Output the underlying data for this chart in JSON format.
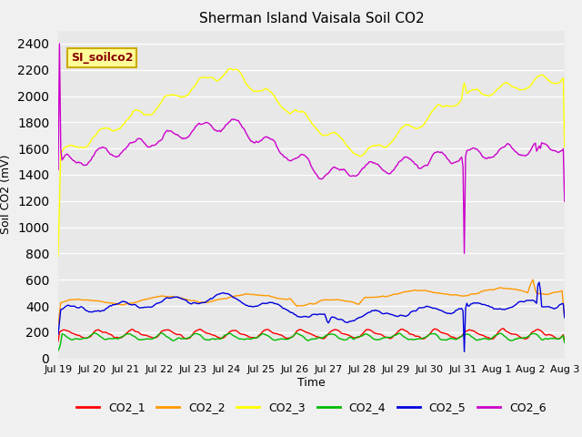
{
  "title": "Sherman Island Vaisala Soil CO2",
  "xlabel": "Time",
  "ylabel": "Soil CO2 (mV)",
  "ylim": [
    0,
    2500
  ],
  "yticks": [
    0,
    200,
    400,
    600,
    800,
    1000,
    1200,
    1400,
    1600,
    1800,
    2000,
    2200,
    2400
  ],
  "fig_bg": "#f0f0f0",
  "plot_bg": "#e8e8e8",
  "legend_label": "SI_soilco2",
  "legend_box_facecolor": "#ffff99",
  "legend_box_edgecolor": "#ccaa00",
  "series_colors": {
    "CO2_1": "#ff0000",
    "CO2_2": "#ff9900",
    "CO2_3": "#ffff00",
    "CO2_4": "#00bb00",
    "CO2_5": "#0000dd",
    "CO2_6": "#cc00cc"
  },
  "linewidth": 1.0,
  "num_points": 400,
  "xtick_labels": [
    "Jul 19",
    "Jul 20",
    "Jul 21",
    "Jul 22",
    "Jul 23",
    "Jul 24",
    "Jul 25",
    "Jul 26",
    "Jul 27",
    "Jul 28",
    "Jul 29",
    "Jul 30",
    "Jul 31",
    "Aug 1",
    "Aug 2",
    "Aug 3"
  ],
  "xtick_positions": [
    0,
    1,
    2,
    3,
    4,
    5,
    6,
    7,
    8,
    9,
    10,
    11,
    12,
    13,
    14,
    15
  ],
  "grid_color": "#ffffff",
  "title_fontsize": 11,
  "axis_label_fontsize": 9,
  "tick_fontsize": 8
}
